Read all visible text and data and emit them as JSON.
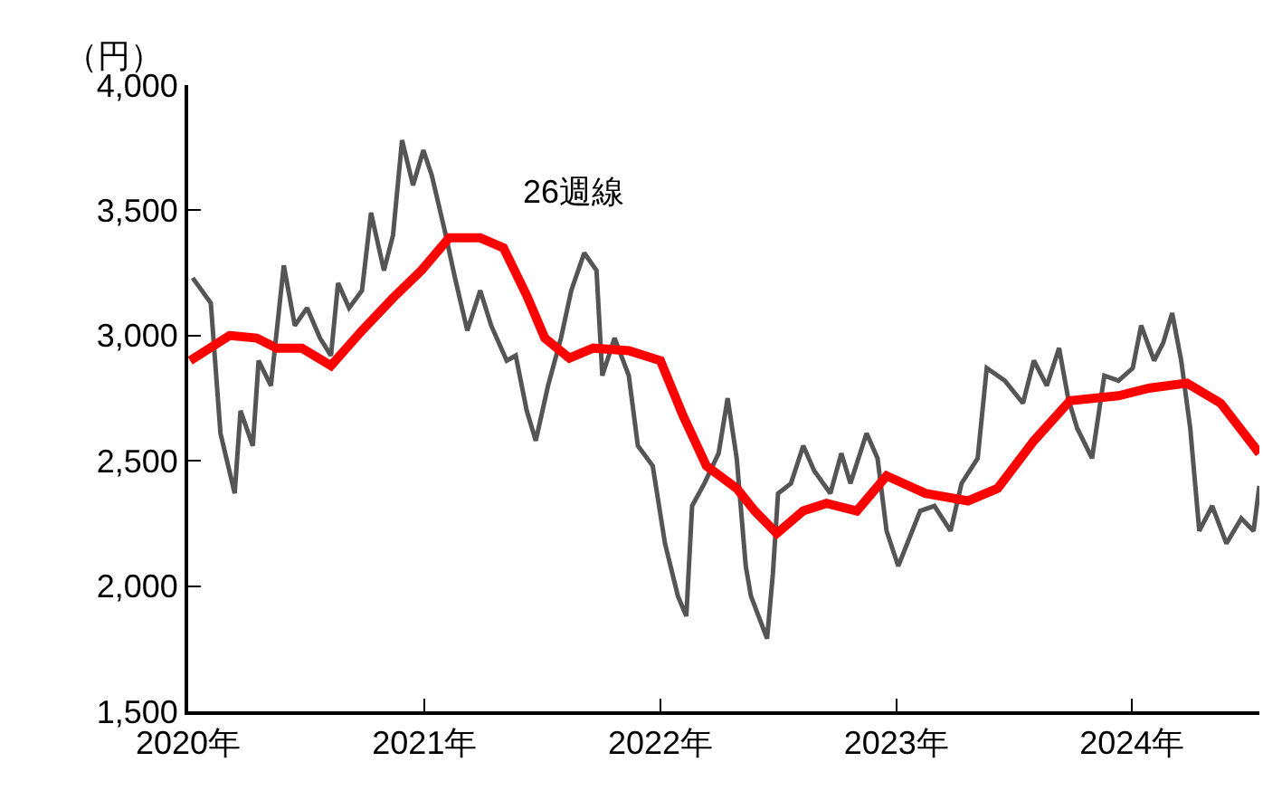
{
  "chart_data": {
    "type": "line",
    "ylabel": "（円）",
    "annotations": [
      "26週線"
    ],
    "xlim": [
      "2020-01-01",
      "2024-07-16"
    ],
    "xticks": [
      {
        "value": "2020-01-01",
        "label": "2020年"
      },
      {
        "value": "2021-01-01",
        "label": "2021年"
      },
      {
        "value": "2022-01-01",
        "label": "2022年"
      },
      {
        "value": "2023-01-01",
        "label": "2023年"
      },
      {
        "value": "2024-01-01",
        "label": "2024年"
      }
    ],
    "ylim": [
      1500,
      4000
    ],
    "yticks": [
      {
        "value": 1500,
        "label": "1,500"
      },
      {
        "value": 2000,
        "label": "2,000"
      },
      {
        "value": 2500,
        "label": "2,500"
      },
      {
        "value": 3000,
        "label": "3,000"
      },
      {
        "value": 3500,
        "label": "3,500"
      },
      {
        "value": 4000,
        "label": "4,000"
      }
    ],
    "grid": false,
    "marker": "none",
    "line_style": "solid",
    "series": [
      {
        "color": "#555555",
        "x": [
          "2020-01-08",
          "2020-02-05",
          "2020-02-20",
          "2020-03-13",
          "2020-03-22",
          "2020-04-10",
          "2020-04-19",
          "2020-05-08",
          "2020-05-28",
          "2020-06-14",
          "2020-07-03",
          "2020-07-23",
          "2020-08-09",
          "2020-08-20",
          "2020-09-06",
          "2020-09-26",
          "2020-10-10",
          "2020-10-30",
          "2020-11-13",
          "2020-11-27",
          "2020-12-14",
          "2020-12-30",
          "2021-01-12",
          "2021-02-01",
          "2021-02-17",
          "2021-03-08",
          "2021-03-28",
          "2021-04-14",
          "2021-05-08",
          "2021-05-22",
          "2021-06-08",
          "2021-06-22",
          "2021-07-11",
          "2021-07-31",
          "2021-08-16",
          "2021-09-05",
          "2021-09-24",
          "2021-10-03",
          "2021-10-22",
          "2021-11-13",
          "2021-11-27",
          "2021-12-20",
          "2022-01-08",
          "2022-01-28",
          "2022-02-10",
          "2022-02-19",
          "2022-03-10",
          "2022-04-01",
          "2022-04-15",
          "2022-04-29",
          "2022-05-13",
          "2022-05-21",
          "2022-06-15",
          "2022-06-24",
          "2022-07-02",
          "2022-07-22",
          "2022-08-10",
          "2022-08-27",
          "2022-09-21",
          "2022-10-08",
          "2022-10-22",
          "2022-11-16",
          "2022-12-03",
          "2022-12-17",
          "2023-01-04",
          "2023-01-18",
          "2023-02-07",
          "2023-03-01",
          "2023-03-26",
          "2023-04-12",
          "2023-05-07",
          "2023-05-21",
          "2023-06-18",
          "2023-07-16",
          "2023-08-02",
          "2023-08-22",
          "2023-09-10",
          "2023-09-24",
          "2023-10-08",
          "2023-10-31",
          "2023-11-19",
          "2023-12-11",
          "2024-01-02",
          "2024-01-15",
          "2024-02-04",
          "2024-02-18",
          "2024-03-03",
          "2024-03-17",
          "2024-03-31",
          "2024-04-14",
          "2024-05-04",
          "2024-05-26",
          "2024-06-18",
          "2024-07-07",
          "2024-07-16"
        ],
        "values": [
          3230,
          3130,
          2610,
          2370,
          2700,
          2560,
          2900,
          2800,
          3280,
          3040,
          3110,
          2990,
          2920,
          3210,
          3110,
          3180,
          3490,
          3260,
          3400,
          3780,
          3600,
          3740,
          3640,
          3420,
          3230,
          3020,
          3180,
          3040,
          2900,
          2920,
          2700,
          2580,
          2800,
          2990,
          3180,
          3330,
          3260,
          2840,
          2990,
          2840,
          2560,
          2480,
          2170,
          1960,
          1880,
          2320,
          2410,
          2530,
          2750,
          2510,
          2080,
          1960,
          1790,
          2050,
          2370,
          2410,
          2560,
          2460,
          2370,
          2530,
          2410,
          2610,
          2510,
          2220,
          2080,
          2170,
          2300,
          2320,
          2220,
          2410,
          2510,
          2870,
          2820,
          2730,
          2900,
          2800,
          2950,
          2750,
          2630,
          2510,
          2840,
          2820,
          2870,
          3040,
          2900,
          2970,
          3090,
          2900,
          2630,
          2220,
          2320,
          2170,
          2270,
          2220,
          2400
        ]
      },
      {
        "color": "#ff0000",
        "x": [
          "2020-01-04",
          "2020-03-05",
          "2020-04-16",
          "2020-05-17",
          "2020-06-25",
          "2020-08-09",
          "2020-09-26",
          "2020-11-13",
          "2020-12-27",
          "2021-02-08",
          "2021-03-28",
          "2021-05-03",
          "2021-06-08",
          "2021-07-06",
          "2021-08-13",
          "2021-09-19",
          "2021-11-13",
          "2022-01-01",
          "2022-02-05",
          "2022-03-13",
          "2022-04-29",
          "2022-05-27",
          "2022-06-30",
          "2022-08-10",
          "2022-09-15",
          "2022-11-01",
          "2022-12-17",
          "2023-02-15",
          "2023-04-22",
          "2023-06-07",
          "2023-08-02",
          "2023-09-27",
          "2023-12-11",
          "2024-01-27",
          "2024-03-26",
          "2024-05-17",
          "2024-07-16"
        ],
        "values": [
          2900,
          3000,
          2990,
          2950,
          2950,
          2880,
          3020,
          3150,
          3260,
          3390,
          3390,
          3350,
          3160,
          2990,
          2910,
          2950,
          2940,
          2900,
          2680,
          2480,
          2390,
          2300,
          2210,
          2300,
          2330,
          2300,
          2440,
          2370,
          2340,
          2390,
          2580,
          2740,
          2760,
          2790,
          2810,
          2730,
          2530
        ]
      }
    ]
  }
}
